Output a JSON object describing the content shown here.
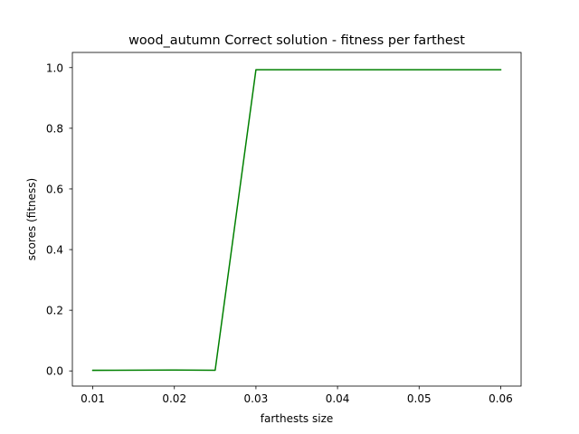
{
  "chart_data": {
    "type": "line",
    "title": "wood_autumn Correct solution - fitness per farthest",
    "xlabel": "farthests size",
    "ylabel": "scores (fitness)",
    "xlim": [
      0.0075,
      0.0625
    ],
    "ylim": [
      -0.05,
      1.05
    ],
    "x_ticks": [
      0.01,
      0.02,
      0.03,
      0.04,
      0.05,
      0.06
    ],
    "x_tick_labels": [
      "0.01",
      "0.02",
      "0.03",
      "0.04",
      "0.05",
      "0.06"
    ],
    "y_ticks": [
      0.0,
      0.2,
      0.4,
      0.6,
      0.8,
      1.0
    ],
    "y_tick_labels": [
      "0.0",
      "0.2",
      "0.4",
      "0.6",
      "0.8",
      "1.0"
    ],
    "grid": false,
    "legend": "none",
    "series": [
      {
        "color": "#008000",
        "x": [
          0.01,
          0.02,
          0.025,
          0.03,
          0.04,
          0.05,
          0.06
        ],
        "y": [
          0.002,
          0.003,
          0.002,
          0.993,
          0.993,
          0.993,
          0.993
        ]
      }
    ]
  }
}
